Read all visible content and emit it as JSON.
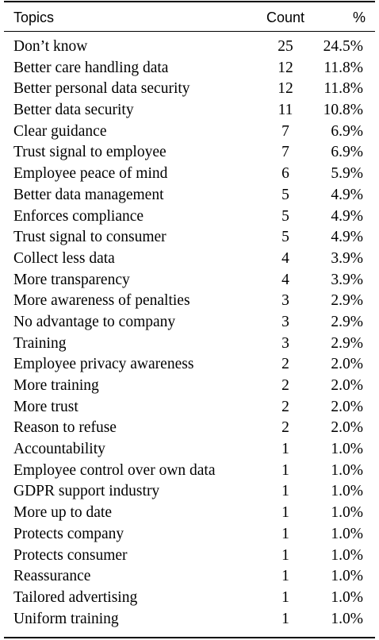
{
  "table": {
    "headers": {
      "topic": "Topics",
      "count": "Count",
      "percent": "%"
    },
    "rows": [
      {
        "topic": "Don’t know",
        "count": "25",
        "percent": "24.5%"
      },
      {
        "topic": "Better care handling data",
        "count": "12",
        "percent": "11.8%"
      },
      {
        "topic": "Better personal data security",
        "count": "12",
        "percent": "11.8%"
      },
      {
        "topic": "Better data security",
        "count": "11",
        "percent": "10.8%"
      },
      {
        "topic": "Clear guidance",
        "count": "7",
        "percent": "6.9%"
      },
      {
        "topic": "Trust signal to employee",
        "count": "7",
        "percent": "6.9%"
      },
      {
        "topic": "Employee peace of mind",
        "count": "6",
        "percent": "5.9%"
      },
      {
        "topic": "Better data management",
        "count": "5",
        "percent": "4.9%"
      },
      {
        "topic": "Enforces compliance",
        "count": "5",
        "percent": "4.9%"
      },
      {
        "topic": "Trust signal to consumer",
        "count": "5",
        "percent": "4.9%"
      },
      {
        "topic": "Collect less data",
        "count": "4",
        "percent": "3.9%"
      },
      {
        "topic": "More transparency",
        "count": "4",
        "percent": "3.9%"
      },
      {
        "topic": "More awareness of penalties",
        "count": "3",
        "percent": "2.9%"
      },
      {
        "topic": "No advantage to company",
        "count": "3",
        "percent": "2.9%"
      },
      {
        "topic": "Training",
        "count": "3",
        "percent": "2.9%"
      },
      {
        "topic": "Employee privacy awareness",
        "count": "2",
        "percent": "2.0%"
      },
      {
        "topic": "More training",
        "count": "2",
        "percent": "2.0%"
      },
      {
        "topic": "More trust",
        "count": "2",
        "percent": "2.0%"
      },
      {
        "topic": "Reason to refuse",
        "count": "2",
        "percent": "2.0%"
      },
      {
        "topic": "Accountability",
        "count": "1",
        "percent": "1.0%"
      },
      {
        "topic": "Employee control over own data",
        "count": "1",
        "percent": "1.0%"
      },
      {
        "topic": "GDPR support industry",
        "count": "1",
        "percent": "1.0%"
      },
      {
        "topic": "More up to date",
        "count": "1",
        "percent": "1.0%"
      },
      {
        "topic": "Protects company",
        "count": "1",
        "percent": "1.0%"
      },
      {
        "topic": "Protects consumer",
        "count": "1",
        "percent": "1.0%"
      },
      {
        "topic": "Reassurance",
        "count": "1",
        "percent": "1.0%"
      },
      {
        "topic": "Tailored advertising",
        "count": "1",
        "percent": "1.0%"
      },
      {
        "topic": "Uniform training",
        "count": "1",
        "percent": "1.0%"
      }
    ]
  }
}
